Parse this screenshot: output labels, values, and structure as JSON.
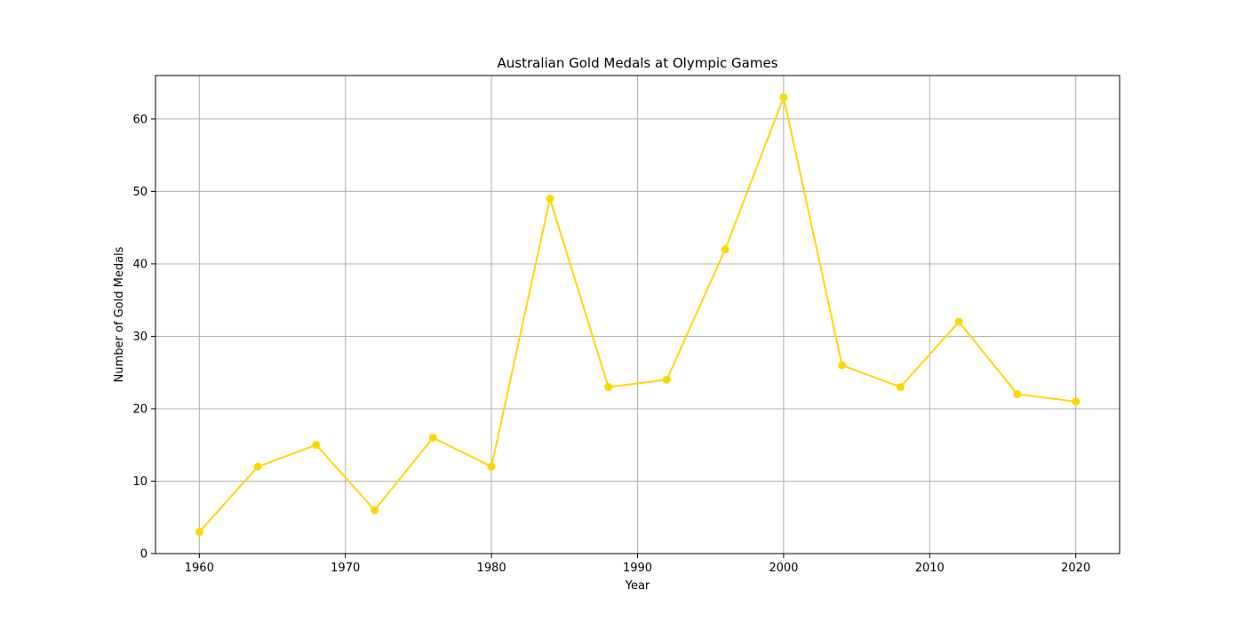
{
  "chart_data": {
    "type": "line",
    "title": "Australian Gold Medals at Olympic Games",
    "xlabel": "Year",
    "ylabel": "Number of Gold Medals",
    "xlim": [
      1957,
      2023
    ],
    "ylim": [
      0,
      66
    ],
    "xticks": [
      1960,
      1970,
      1980,
      1990,
      2000,
      2010,
      2020
    ],
    "yticks": [
      0,
      10,
      20,
      30,
      40,
      50,
      60
    ],
    "grid": true,
    "series": [
      {
        "color": "#FFD700",
        "marker": "circle",
        "x": [
          1960,
          1964,
          1968,
          1972,
          1976,
          1980,
          1984,
          1988,
          1992,
          1996,
          2000,
          2004,
          2008,
          2012,
          2016,
          2020
        ],
        "y": [
          3,
          12,
          15,
          6,
          16,
          12,
          49,
          23,
          24,
          42,
          63,
          26,
          23,
          32,
          22,
          21
        ]
      }
    ]
  }
}
